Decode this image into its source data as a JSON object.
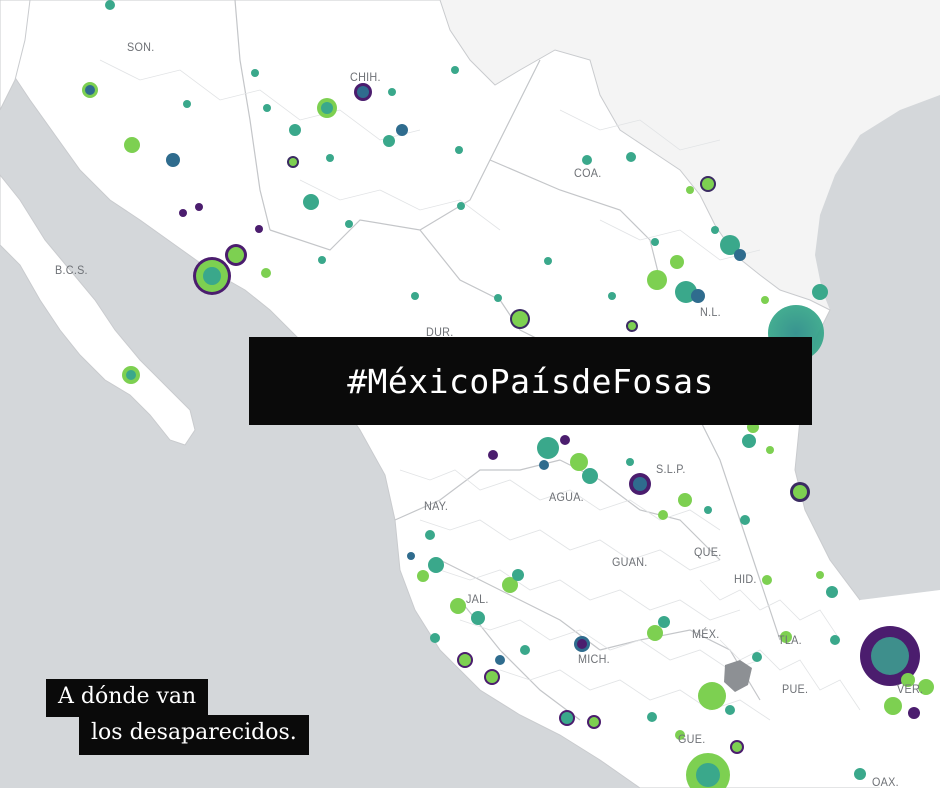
{
  "hashtag": "#MéxicoPaísdeFosas",
  "caption": {
    "line1": "A dónde van",
    "line2": "los desaparecidos."
  },
  "state_labels": {
    "son": "SON.",
    "chih": "CHIH.",
    "coa": "COA.",
    "bcs": "B.C.S.",
    "dur": "DUR.",
    "nl": "N.L.",
    "slp": "S.L.P.",
    "nay": "NAY.",
    "agua": "AGUA.",
    "guan": "GUAN.",
    "que": "QUE.",
    "hid": "HID.",
    "jal": "JAL.",
    "mex": "MÉX.",
    "tla": "TLA.",
    "mich": "MICH.",
    "pue": "PUE.",
    "ver": "VER.",
    "gue": "GUE.",
    "oax": "OAX."
  },
  "colors": {
    "sea": "#d4d7da",
    "land": "#ffffff",
    "border": "#c9cbce",
    "marker_purple": "#4b1d6e",
    "marker_teal": "#2e8e8a",
    "marker_green": "#78d152",
    "marker_blue": "#2f6c8e",
    "banner": "#0a0a0a",
    "banner_text": "#ffffff"
  }
}
